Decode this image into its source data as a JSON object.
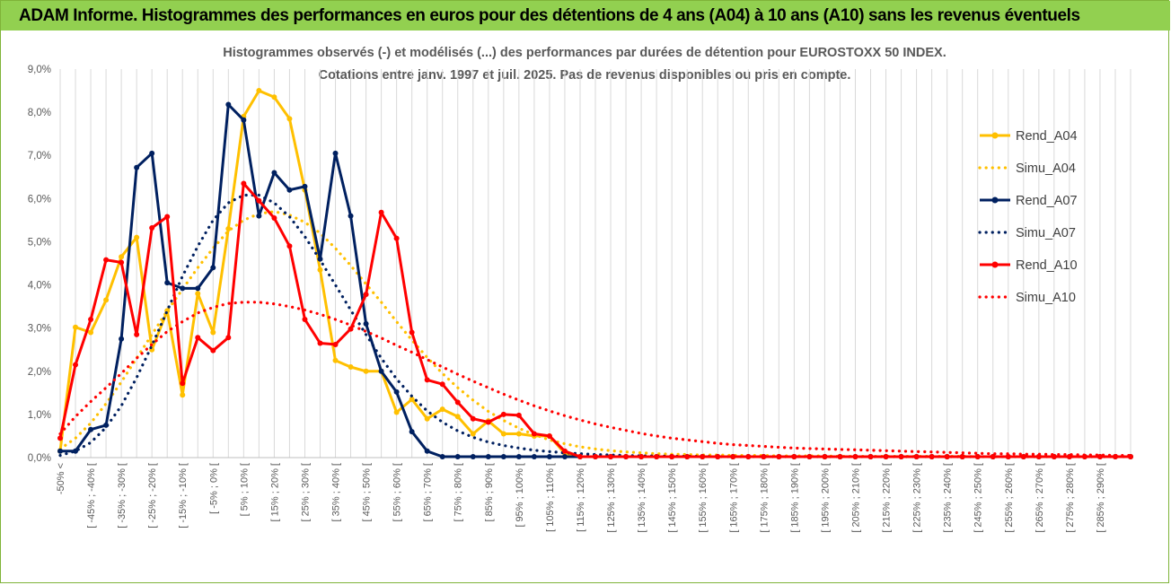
{
  "header": {
    "title": "ADAM Informe. Histogrammes des performances en euros pour des détentions de 4 ans (A04) à 10 ans (A10) sans les revenus éventuels"
  },
  "colors": {
    "header_bg": "#92d050",
    "A04": "#ffc000",
    "A07": "#002060",
    "A10": "#ff0000"
  },
  "chart_data": {
    "type": "line",
    "title": "Histogrammes observés (-) et modélisés (...) des performances par durées de détention pour EUROSTOXX 50 INDEX.",
    "subtitle": "Cotations entre janv. 1997 et juil. 2025. Pas de revenus disponibles ou pris en compte.",
    "ylim": [
      0,
      9
    ],
    "yticks": [
      "0,0%",
      "1,0%",
      "2,0%",
      "3,0%",
      "4,0%",
      "5,0%",
      "6,0%",
      "7,0%",
      "8,0%",
      "9,0%"
    ],
    "grid": "vertical",
    "legend_position": "right",
    "x_tick_labels": [
      "-50% <",
      "[ -45% ; -40% [",
      "[ -35% ; -30% [",
      "[ -25% ; -20% [",
      "[ -15% ; -10% [",
      "[ -5% ; 0% [",
      "[ 5% ; 10% [",
      "[ 15% ; 20% [",
      "[ 25% ; 30% [",
      "[ 35% ; 40% [",
      "[ 45% ; 50% [",
      "[ 55% ; 60% [",
      "[ 65% ; 70% [",
      "[ 75% ; 80% [",
      "[ 85% ; 90% [",
      "[ 95% ; 100% [",
      "[ 105% ; 110% [",
      "[ 115% ; 120% [",
      "[ 125% ; 130% [",
      "[ 135% ; 140% [",
      "[ 145% ; 150% [",
      "[ 155% ; 160% [",
      "[ 165% ; 170% [",
      "[ 175% ; 180% [",
      "[ 185% ; 190% [",
      "[ 195% ; 200% [",
      "[ 205% ; 210% [",
      "[ 215% ; 220% [",
      "[ 225% ; 230% [",
      "[ 235% ; 240% [",
      "[ 245% ; 250% [",
      "[ 255% ; 260% [",
      "[ 265% ; 270% [",
      "[ 275% ; 280% [",
      "[ 285% ; 290% ["
    ],
    "series": [
      {
        "name": "Rend_A04",
        "style": "solid",
        "color": "#ffc000",
        "values": [
          0.15,
          3.02,
          2.9,
          3.65,
          4.65,
          5.1,
          2.5,
          3.4,
          1.45,
          3.8,
          2.9,
          5.3,
          7.9,
          8.5,
          8.35,
          7.85,
          6.2,
          4.35,
          2.25,
          2.1,
          2.0,
          2.0,
          1.05,
          1.35,
          0.9,
          1.12,
          0.95,
          0.55,
          0.85,
          0.55,
          0.55,
          0.5,
          0.5,
          0.1,
          0.02,
          0.02,
          0.02,
          0.02,
          0.02,
          0.02,
          0.02,
          0.02,
          0.02,
          0.02,
          0.02,
          0.02,
          0.02,
          0.02,
          0.02,
          0.02,
          0.02,
          0.02,
          0.02,
          0.02,
          0.02,
          0.02,
          0.02,
          0.02,
          0.02,
          0.02,
          0.02,
          0.02,
          0.02,
          0.02,
          0.02,
          0.02,
          0.02,
          0.02,
          0.02,
          0.02,
          0.02
        ]
      },
      {
        "name": "Simu_A04",
        "style": "dotted",
        "color": "#ffc000",
        "values": [
          0.2,
          0.45,
          0.8,
          1.25,
          1.75,
          2.3,
          2.85,
          3.4,
          3.9,
          4.4,
          4.85,
          5.25,
          5.5,
          5.65,
          5.7,
          5.62,
          5.45,
          5.2,
          4.85,
          4.45,
          4.02,
          3.6,
          3.15,
          2.72,
          2.32,
          1.95,
          1.62,
          1.33,
          1.07,
          0.86,
          0.68,
          0.53,
          0.41,
          0.32,
          0.25,
          0.2,
          0.16,
          0.13,
          0.11,
          0.09,
          0.08,
          0.07,
          0.06,
          0.06,
          0.05,
          0.05,
          0.05,
          0.04,
          0.04,
          0.04,
          0.04,
          0.03,
          0.03,
          0.03,
          0.03,
          0.03,
          0.03,
          0.03,
          0.03,
          0.03,
          0.02,
          0.02,
          0.02,
          0.02,
          0.02,
          0.02,
          0.02,
          0.02,
          0.02,
          0.02,
          0.02
        ]
      },
      {
        "name": "Rend_A07",
        "style": "solid",
        "color": "#002060",
        "values": [
          0.15,
          0.15,
          0.65,
          0.75,
          2.75,
          6.72,
          7.05,
          4.05,
          3.92,
          3.92,
          4.4,
          8.18,
          7.82,
          5.6,
          6.6,
          6.2,
          6.28,
          4.6,
          7.05,
          5.6,
          3.1,
          2.0,
          1.52,
          0.6,
          0.15,
          0.02,
          0.02,
          0.02,
          0.02,
          0.02,
          0.02,
          0.02,
          0.02,
          0.02,
          0.02,
          0.02,
          0.02,
          0.02,
          0.02,
          0.02,
          0.02,
          0.02,
          0.02,
          0.02,
          0.02,
          0.02,
          0.02,
          0.02,
          0.02,
          0.02,
          0.02,
          0.02,
          0.02,
          0.02,
          0.02,
          0.02,
          0.02,
          0.02,
          0.02,
          0.02,
          0.02,
          0.02,
          0.02,
          0.02,
          0.02,
          0.02,
          0.02,
          0.02,
          0.02,
          0.02,
          0.02
        ]
      },
      {
        "name": "Simu_A07",
        "style": "dotted",
        "color": "#002060",
        "values": [
          0.05,
          0.15,
          0.35,
          0.7,
          1.2,
          1.85,
          2.6,
          3.4,
          4.2,
          4.9,
          5.5,
          5.9,
          6.08,
          6.08,
          5.9,
          5.58,
          5.12,
          4.58,
          4.0,
          3.42,
          2.85,
          2.3,
          1.82,
          1.42,
          1.08,
          0.82,
          0.62,
          0.47,
          0.36,
          0.28,
          0.22,
          0.17,
          0.14,
          0.11,
          0.09,
          0.07,
          0.06,
          0.05,
          0.04,
          0.04,
          0.03,
          0.03,
          0.03,
          0.02,
          0.02,
          0.02,
          0.02,
          0.02,
          0.02,
          0.02,
          0.02,
          0.02,
          0.02,
          0.02,
          0.02,
          0.02,
          0.02,
          0.02,
          0.02,
          0.02,
          0.02,
          0.02,
          0.02,
          0.02,
          0.02,
          0.02,
          0.02,
          0.02,
          0.02,
          0.02,
          0.02
        ]
      },
      {
        "name": "Rend_A10",
        "style": "solid",
        "color": "#ff0000",
        "values": [
          0.45,
          2.15,
          3.2,
          4.58,
          4.52,
          2.85,
          5.32,
          5.58,
          1.72,
          2.78,
          2.48,
          2.78,
          6.35,
          5.95,
          5.55,
          4.9,
          3.2,
          2.65,
          2.62,
          2.98,
          3.78,
          5.68,
          5.08,
          2.9,
          1.8,
          1.7,
          1.28,
          0.9,
          0.82,
          1.0,
          0.98,
          0.55,
          0.5,
          0.15,
          0.02,
          0.02,
          0.02,
          0.02,
          0.02,
          0.02,
          0.02,
          0.02,
          0.02,
          0.02,
          0.02,
          0.02,
          0.02,
          0.02,
          0.02,
          0.02,
          0.02,
          0.02,
          0.02,
          0.02,
          0.02,
          0.02,
          0.02,
          0.02,
          0.02,
          0.02,
          0.02,
          0.02,
          0.02,
          0.02,
          0.02,
          0.02,
          0.02,
          0.02,
          0.02,
          0.02,
          0.02
        ]
      },
      {
        "name": "Simu_A10",
        "style": "dotted",
        "color": "#ff0000",
        "values": [
          0.55,
          0.95,
          1.3,
          1.62,
          1.95,
          2.3,
          2.62,
          2.92,
          3.15,
          3.35,
          3.48,
          3.57,
          3.6,
          3.6,
          3.56,
          3.5,
          3.42,
          3.32,
          3.2,
          3.07,
          2.92,
          2.77,
          2.6,
          2.44,
          2.27,
          2.1,
          1.93,
          1.77,
          1.62,
          1.47,
          1.33,
          1.2,
          1.08,
          0.97,
          0.87,
          0.78,
          0.7,
          0.63,
          0.56,
          0.5,
          0.45,
          0.41,
          0.37,
          0.33,
          0.3,
          0.28,
          0.26,
          0.24,
          0.22,
          0.21,
          0.2,
          0.19,
          0.18,
          0.17,
          0.16,
          0.15,
          0.14,
          0.13,
          0.12,
          0.11,
          0.1,
          0.09,
          0.09,
          0.08,
          0.08,
          0.07,
          0.07,
          0.06,
          0.06,
          0.05,
          0.05
        ]
      }
    ]
  }
}
